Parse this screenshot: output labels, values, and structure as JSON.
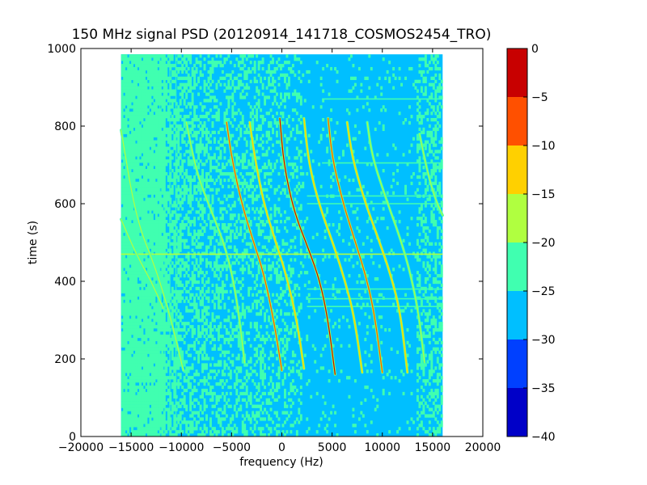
{
  "chart_data": {
    "type": "heatmap",
    "title": "150 MHz signal PSD (20120914_141718_COSMOS2454_TRO)",
    "xlabel": "frequency (Hz)",
    "ylabel": "time (s)",
    "xlim": [
      -20000,
      20000
    ],
    "ylim": [
      0,
      1000
    ],
    "x_ticks": [
      -20000,
      -15000,
      -10000,
      -5000,
      0,
      5000,
      10000,
      15000,
      20000
    ],
    "y_ticks": [
      0,
      200,
      400,
      600,
      800,
      1000
    ],
    "data_extent": {
      "x": [
        -16000,
        16000
      ],
      "y": [
        0,
        985
      ]
    },
    "grid": false,
    "colorbar": {
      "levels": [
        -40,
        -35,
        -30,
        -25,
        -20,
        -15,
        -10,
        -5,
        0
      ],
      "ticks": [
        0,
        -5,
        -10,
        -15,
        -20,
        -25,
        -30,
        -35,
        -40
      ],
      "colors": [
        "#0000c8",
        "#0040ff",
        "#00bfff",
        "#40ffb0",
        "#b0ff40",
        "#ffd000",
        "#ff5000",
        "#c80000"
      ]
    },
    "background_regions": [
      {
        "x": [
          -16000,
          -11500
        ],
        "level": "-25..-20"
      },
      {
        "x": [
          -11500,
          2000
        ],
        "level": "-30..-25 / -25..-20 mixed"
      },
      {
        "x": [
          2000,
          16000
        ],
        "level": "-30..-25"
      }
    ],
    "traces": [
      {
        "points": [
          [
            -16000,
            790
          ],
          [
            -14500,
            560
          ],
          [
            -12500,
            430
          ],
          [
            -11000,
            300
          ],
          [
            -9800,
            170
          ]
        ],
        "peak_level": "-20..-15"
      },
      {
        "points": [
          [
            -16000,
            560
          ],
          [
            -14500,
            470
          ],
          [
            -13000,
            400
          ],
          [
            -11800,
            330
          ]
        ],
        "peak_level": "-20..-15"
      },
      {
        "points": [
          [
            -9500,
            810
          ],
          [
            -8500,
            680
          ],
          [
            -7000,
            580
          ],
          [
            -5500,
            480
          ],
          [
            -4500,
            360
          ],
          [
            -3700,
            190
          ]
        ],
        "peak_level": "-20..-15"
      },
      {
        "points": [
          [
            -5500,
            810
          ],
          [
            -5000,
            720
          ],
          [
            -4000,
            600
          ],
          [
            -2800,
            500
          ],
          [
            -1800,
            420
          ],
          [
            -800,
            300
          ],
          [
            0,
            170
          ]
        ],
        "peak_level": "-10..-5"
      },
      {
        "points": [
          [
            -3200,
            810
          ],
          [
            -2700,
            720
          ],
          [
            -1800,
            600
          ],
          [
            -600,
            500
          ],
          [
            400,
            420
          ],
          [
            1500,
            300
          ],
          [
            2200,
            175
          ]
        ],
        "peak_level": "-15..-10"
      },
      {
        "points": [
          [
            -200,
            820
          ],
          [
            200,
            700
          ],
          [
            1200,
            580
          ],
          [
            2700,
            480
          ],
          [
            3800,
            400
          ],
          [
            4600,
            300
          ],
          [
            5300,
            160
          ]
        ],
        "peak_level": "-5..0"
      },
      {
        "points": [
          [
            2200,
            820
          ],
          [
            2700,
            700
          ],
          [
            3800,
            590
          ],
          [
            5200,
            490
          ],
          [
            6300,
            400
          ],
          [
            7200,
            310
          ],
          [
            8000,
            165
          ]
        ],
        "peak_level": "-15..-10"
      },
      {
        "points": [
          [
            4600,
            820
          ],
          [
            5000,
            720
          ],
          [
            6000,
            610
          ],
          [
            7200,
            510
          ],
          [
            8300,
            420
          ],
          [
            9200,
            320
          ],
          [
            10000,
            165
          ]
        ],
        "peak_level": "-10..-5"
      },
      {
        "points": [
          [
            6500,
            810
          ],
          [
            7000,
            720
          ],
          [
            8200,
            610
          ],
          [
            9600,
            510
          ],
          [
            10800,
            420
          ],
          [
            11800,
            320
          ],
          [
            12500,
            165
          ]
        ],
        "peak_level": "-15..-10"
      },
      {
        "points": [
          [
            8500,
            810
          ],
          [
            9000,
            720
          ],
          [
            10400,
            610
          ],
          [
            11800,
            510
          ],
          [
            12800,
            420
          ],
          [
            13600,
            320
          ],
          [
            14200,
            190
          ]
        ],
        "peak_level": "-20..-15"
      },
      {
        "points": [
          [
            13700,
            780
          ],
          [
            14500,
            680
          ],
          [
            15300,
            610
          ],
          [
            16000,
            570
          ]
        ],
        "peak_level": "-20..-15"
      }
    ],
    "horizontal_lines": [
      {
        "y": 470,
        "x": [
          -16000,
          16000
        ],
        "level": "-20..-15"
      },
      {
        "y": 380,
        "x": [
          2500,
          16000
        ],
        "level": "-25..-20"
      },
      {
        "y": 355,
        "x": [
          2500,
          16000
        ],
        "level": "-25..-20"
      },
      {
        "y": 335,
        "x": [
          2500,
          16000
        ],
        "level": "-25..-20"
      },
      {
        "y": 600,
        "x": [
          2500,
          16000
        ],
        "level": "-25..-20"
      },
      {
        "y": 620,
        "x": [
          2500,
          16000
        ],
        "level": "-25..-20"
      },
      {
        "y": 705,
        "x": [
          4000,
          16000
        ],
        "level": "-25..-20"
      },
      {
        "y": 870,
        "x": [
          4000,
          16000
        ],
        "level": "-25..-20"
      }
    ]
  }
}
